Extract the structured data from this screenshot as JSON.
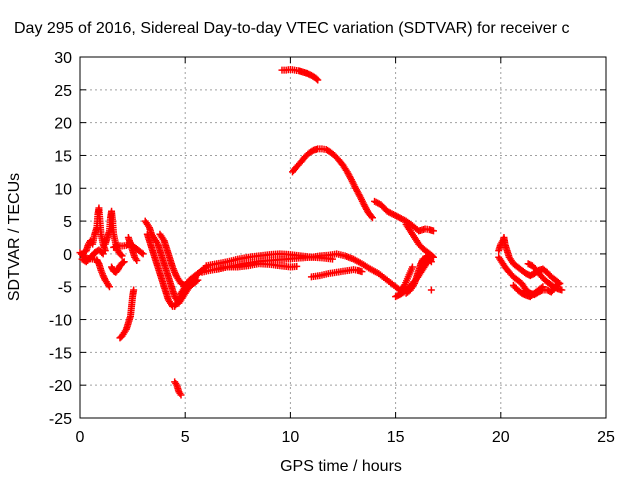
{
  "chart_data": {
    "type": "scatter",
    "title": "Day 295 of 2016, Sidereal Day-to-day VTEC variation (SDTVAR) for receiver c",
    "xlabel": "GPS time / hours",
    "ylabel": "SDTVAR / TECUs",
    "xlim": [
      0,
      25
    ],
    "ylim": [
      -25,
      30
    ],
    "xticks": [
      0,
      5,
      10,
      15,
      20,
      25
    ],
    "yticks": [
      -25,
      -20,
      -15,
      -10,
      -5,
      0,
      5,
      10,
      15,
      20,
      25,
      30
    ],
    "grid": true,
    "marker": "plus",
    "color": "#ff0000",
    "segments": [
      [
        [
          0.0,
          0.2
        ],
        [
          0.2,
          -0.5
        ],
        [
          0.4,
          -0.7
        ],
        [
          0.6,
          -0.8
        ],
        [
          0.8,
          -0.9
        ],
        [
          0.9,
          -1.5
        ],
        [
          1.0,
          -2.5
        ],
        [
          1.1,
          -3.3
        ],
        [
          1.2,
          -4.0
        ],
        [
          1.3,
          -4.5
        ],
        [
          1.4,
          -5.0
        ]
      ],
      [
        [
          0.1,
          0.0
        ],
        [
          0.3,
          0.5
        ],
        [
          0.4,
          1.5
        ],
        [
          0.5,
          2.0
        ],
        [
          0.6,
          1.5
        ],
        [
          0.7,
          3.0
        ],
        [
          0.8,
          4.0
        ],
        [
          0.85,
          6.0
        ],
        [
          0.9,
          7.0
        ],
        [
          0.95,
          5.0
        ],
        [
          1.0,
          3.0
        ],
        [
          1.1,
          1.5
        ],
        [
          1.2,
          0.5
        ]
      ],
      [
        [
          0.1,
          -0.8
        ],
        [
          0.3,
          -1.2
        ],
        [
          0.5,
          -0.6
        ],
        [
          0.7,
          0.2
        ],
        [
          0.9,
          0.6
        ],
        [
          1.1,
          0.0
        ]
      ],
      [
        [
          1.2,
          1.5
        ],
        [
          1.3,
          2.5
        ],
        [
          1.4,
          3.5
        ],
        [
          1.45,
          5.5
        ],
        [
          1.5,
          6.5
        ],
        [
          1.55,
          5.0
        ],
        [
          1.6,
          3.0
        ],
        [
          1.7,
          1.5
        ],
        [
          1.8,
          0.5
        ],
        [
          1.9,
          0.0
        ],
        [
          2.0,
          -0.3
        ]
      ],
      [
        [
          1.5,
          -2.0
        ],
        [
          1.6,
          -2.6
        ],
        [
          1.7,
          -2.8
        ],
        [
          1.8,
          -2.4
        ],
        [
          1.9,
          -1.8
        ],
        [
          2.0,
          -1.4
        ],
        [
          2.1,
          -1.2
        ]
      ],
      [
        [
          1.6,
          1.0
        ],
        [
          1.8,
          1.3
        ],
        [
          2.0,
          1.2
        ],
        [
          2.2,
          1.3
        ],
        [
          2.4,
          1.6
        ],
        [
          2.6,
          1.0
        ],
        [
          2.8,
          0.5
        ],
        [
          3.0,
          0.0
        ]
      ],
      [
        [
          1.9,
          -12.8
        ],
        [
          2.0,
          -12.5
        ],
        [
          2.1,
          -12.0
        ],
        [
          2.2,
          -11.5
        ],
        [
          2.3,
          -10.5
        ],
        [
          2.4,
          -9.5
        ],
        [
          2.45,
          -8.0
        ],
        [
          2.5,
          -6.5
        ],
        [
          2.55,
          -5.5
        ]
      ],
      [
        [
          2.3,
          2.5
        ],
        [
          2.4,
          1.5
        ],
        [
          2.5,
          0.5
        ],
        [
          2.6,
          -0.5
        ],
        [
          2.7,
          -1.0
        ]
      ],
      [
        [
          3.1,
          5.0
        ],
        [
          3.2,
          4.5
        ],
        [
          3.3,
          4.0
        ],
        [
          3.4,
          3.0
        ],
        [
          3.5,
          2.5
        ],
        [
          3.6,
          2.0
        ],
        [
          3.7,
          1.5
        ],
        [
          3.8,
          0.5
        ],
        [
          3.9,
          -0.5
        ],
        [
          4.0,
          -1.5
        ],
        [
          4.1,
          -2.5
        ],
        [
          4.2,
          -3.5
        ],
        [
          4.3,
          -4.5
        ],
        [
          4.4,
          -5.5
        ],
        [
          4.5,
          -6.5
        ],
        [
          4.6,
          -7.0
        ],
        [
          4.7,
          -7.5
        ],
        [
          4.8,
          -7.0
        ],
        [
          4.9,
          -6.5
        ],
        [
          5.0,
          -6.0
        ],
        [
          5.1,
          -5.5
        ],
        [
          5.2,
          -5.0
        ],
        [
          5.4,
          -4.5
        ],
        [
          5.6,
          -4.0
        ]
      ],
      [
        [
          3.2,
          3.0
        ],
        [
          3.3,
          2.0
        ],
        [
          3.4,
          1.0
        ],
        [
          3.5,
          0.0
        ],
        [
          3.6,
          -1.0
        ],
        [
          3.7,
          -2.0
        ],
        [
          3.8,
          -3.0
        ],
        [
          3.9,
          -4.0
        ],
        [
          4.0,
          -5.0
        ],
        [
          4.1,
          -6.0
        ],
        [
          4.2,
          -7.0
        ],
        [
          4.3,
          -7.5
        ],
        [
          4.4,
          -8.0
        ],
        [
          4.5,
          -8.0
        ],
        [
          4.6,
          -7.5
        ],
        [
          4.7,
          -7.0
        ],
        [
          4.8,
          -6.0
        ],
        [
          5.0,
          -5.0
        ],
        [
          5.2,
          -4.0
        ],
        [
          5.4,
          -3.5
        ],
        [
          5.6,
          -3.0
        ],
        [
          5.8,
          -2.5
        ],
        [
          6.0,
          -2.0
        ]
      ],
      [
        [
          3.8,
          3.0
        ],
        [
          3.9,
          2.5
        ],
        [
          4.0,
          2.0
        ],
        [
          4.1,
          1.0
        ],
        [
          4.2,
          0.0
        ],
        [
          4.3,
          -1.0
        ],
        [
          4.4,
          -2.0
        ],
        [
          4.5,
          -2.8
        ],
        [
          4.6,
          -3.5
        ],
        [
          4.8,
          -4.5
        ],
        [
          5.0,
          -4.8
        ],
        [
          5.2,
          -4.5
        ],
        [
          5.4,
          -4.0
        ],
        [
          5.6,
          -3.0
        ],
        [
          5.8,
          -2.5
        ]
      ],
      [
        [
          4.5,
          -19.5
        ],
        [
          4.6,
          -20.0
        ],
        [
          4.7,
          -21.0
        ],
        [
          4.8,
          -21.5
        ]
      ],
      [
        [
          5.8,
          -2.8
        ],
        [
          6.2,
          -2.5
        ],
        [
          6.6,
          -2.3
        ],
        [
          7.0,
          -2.0
        ],
        [
          7.4,
          -1.8
        ],
        [
          7.8,
          -1.5
        ],
        [
          8.2,
          -1.3
        ],
        [
          8.6,
          -1.1
        ],
        [
          9.0,
          -1.0
        ],
        [
          9.4,
          -0.9
        ],
        [
          9.8,
          -0.8
        ],
        [
          10.2,
          -0.7
        ],
        [
          10.6,
          -0.6
        ],
        [
          11.0,
          -0.5
        ],
        [
          11.4,
          -0.3
        ],
        [
          11.8,
          -0.2
        ],
        [
          12.2,
          0.0
        ],
        [
          12.6,
          -0.3
        ],
        [
          13.0,
          -0.8
        ],
        [
          13.4,
          -1.5
        ],
        [
          13.8,
          -2.3
        ],
        [
          14.2,
          -3.0
        ],
        [
          14.6,
          -4.0
        ],
        [
          15.0,
          -5.0
        ],
        [
          15.2,
          -5.5
        ],
        [
          15.4,
          -5.0
        ],
        [
          15.6,
          -3.5
        ],
        [
          15.8,
          -2.0
        ]
      ],
      [
        [
          6.0,
          -1.8
        ],
        [
          6.5,
          -1.5
        ],
        [
          7.0,
          -1.2
        ],
        [
          7.5,
          -0.8
        ],
        [
          8.0,
          -0.5
        ],
        [
          8.5,
          -0.3
        ],
        [
          9.0,
          -0.1
        ],
        [
          9.5,
          0.0
        ],
        [
          10.0,
          -0.1
        ],
        [
          10.5,
          -0.3
        ],
        [
          11.0,
          -0.5
        ],
        [
          11.5,
          -0.6
        ],
        [
          12.0,
          -0.8
        ]
      ],
      [
        [
          6.5,
          -2.3
        ],
        [
          7.0,
          -2.0
        ],
        [
          7.5,
          -2.0
        ],
        [
          8.0,
          -1.8
        ],
        [
          8.5,
          -1.5
        ],
        [
          9.0,
          -1.6
        ],
        [
          9.5,
          -1.8
        ],
        [
          10.0,
          -2.0
        ],
        [
          10.3,
          -1.9
        ]
      ],
      [
        [
          9.6,
          28.0
        ],
        [
          9.8,
          28.0
        ],
        [
          10.0,
          28.1
        ],
        [
          10.2,
          28.0
        ],
        [
          10.4,
          27.9
        ],
        [
          10.6,
          27.7
        ],
        [
          10.8,
          27.5
        ],
        [
          11.0,
          27.2
        ],
        [
          11.2,
          26.8
        ],
        [
          11.3,
          26.5
        ]
      ],
      [
        [
          10.1,
          12.5
        ],
        [
          10.3,
          13.3
        ],
        [
          10.5,
          14.0
        ],
        [
          10.7,
          14.8
        ],
        [
          10.9,
          15.4
        ],
        [
          11.1,
          15.8
        ],
        [
          11.3,
          16.0
        ],
        [
          11.5,
          16.0
        ],
        [
          11.7,
          15.9
        ],
        [
          11.9,
          15.5
        ],
        [
          12.1,
          15.0
        ],
        [
          12.3,
          14.3
        ],
        [
          12.5,
          13.5
        ],
        [
          12.7,
          12.5
        ],
        [
          12.9,
          11.3
        ],
        [
          13.1,
          10.0
        ],
        [
          13.3,
          8.8
        ],
        [
          13.5,
          7.5
        ],
        [
          13.7,
          6.3
        ],
        [
          13.9,
          5.5
        ]
      ],
      [
        [
          11.0,
          -3.5
        ],
        [
          11.4,
          -3.3
        ],
        [
          11.8,
          -3.0
        ],
        [
          12.2,
          -2.8
        ],
        [
          12.6,
          -2.6
        ],
        [
          13.0,
          -2.4
        ],
        [
          13.2,
          -2.5
        ],
        [
          13.4,
          -2.7
        ]
      ],
      [
        [
          14.0,
          8.0
        ],
        [
          14.3,
          7.5
        ],
        [
          14.6,
          6.5
        ],
        [
          14.9,
          6.0
        ],
        [
          15.2,
          5.5
        ],
        [
          15.5,
          5.0
        ],
        [
          15.8,
          4.3
        ],
        [
          16.1,
          3.5
        ],
        [
          16.4,
          3.8
        ],
        [
          16.6,
          3.7
        ],
        [
          16.8,
          3.5
        ]
      ],
      [
        [
          15.5,
          -6.0
        ],
        [
          15.7,
          -5.5
        ],
        [
          15.9,
          -4.5
        ],
        [
          16.0,
          -3.5
        ],
        [
          16.1,
          -2.5
        ],
        [
          16.2,
          -1.5
        ],
        [
          16.3,
          -0.8
        ],
        [
          16.5,
          -0.5
        ],
        [
          16.6,
          -0.8
        ],
        [
          16.7,
          -1.2
        ]
      ],
      [
        [
          15.0,
          -6.5
        ],
        [
          15.2,
          -6.2
        ],
        [
          15.4,
          -5.8
        ],
        [
          15.6,
          -5.2
        ],
        [
          15.8,
          -4.5
        ],
        [
          16.0,
          -3.8
        ],
        [
          16.2,
          -2.8
        ],
        [
          16.4,
          -1.8
        ],
        [
          16.5,
          -1.2
        ]
      ],
      [
        [
          15.5,
          4.5
        ],
        [
          15.7,
          3.5
        ],
        [
          15.9,
          2.5
        ],
        [
          16.1,
          1.5
        ],
        [
          16.3,
          0.8
        ],
        [
          16.5,
          0.3
        ],
        [
          16.7,
          -0.2
        ],
        [
          16.8,
          -0.5
        ]
      ],
      [
        [
          16.7,
          -5.5
        ]
      ],
      [
        [
          19.9,
          0.5
        ],
        [
          20.0,
          1.5
        ],
        [
          20.1,
          2.0
        ],
        [
          20.15,
          2.5
        ],
        [
          20.2,
          1.5
        ],
        [
          20.3,
          0.5
        ],
        [
          20.4,
          -0.5
        ],
        [
          20.6,
          -1.5
        ],
        [
          20.8,
          -2.0
        ],
        [
          21.0,
          -2.5
        ],
        [
          21.2,
          -3.0
        ],
        [
          21.4,
          -3.3
        ],
        [
          21.6,
          -3.0
        ],
        [
          21.8,
          -2.5
        ],
        [
          22.0,
          -2.3
        ],
        [
          22.2,
          -2.8
        ],
        [
          22.4,
          -3.5
        ],
        [
          22.6,
          -4.0
        ],
        [
          22.8,
          -4.5
        ]
      ],
      [
        [
          19.9,
          -0.5
        ],
        [
          20.0,
          -1.0
        ],
        [
          20.2,
          -2.0
        ],
        [
          20.4,
          -2.8
        ],
        [
          20.6,
          -3.5
        ],
        [
          20.8,
          -4.0
        ],
        [
          21.0,
          -4.5
        ],
        [
          21.2,
          -5.5
        ],
        [
          21.4,
          -6.0
        ],
        [
          21.6,
          -6.2
        ],
        [
          21.8,
          -5.8
        ],
        [
          22.0,
          -5.5
        ],
        [
          22.2,
          -5.5
        ],
        [
          22.4,
          -5.8
        ],
        [
          22.6,
          -5.0
        ],
        [
          22.8,
          -4.5
        ]
      ],
      [
        [
          21.3,
          -1.5
        ],
        [
          21.5,
          -1.8
        ],
        [
          21.7,
          -2.5
        ],
        [
          21.9,
          -3.3
        ],
        [
          22.1,
          -4.0
        ],
        [
          22.3,
          -4.5
        ],
        [
          22.5,
          -5.0
        ],
        [
          22.7,
          -5.3
        ],
        [
          22.9,
          -5.5
        ]
      ],
      [
        [
          20.6,
          -4.8
        ],
        [
          20.8,
          -5.5
        ],
        [
          21.0,
          -6.0
        ],
        [
          21.2,
          -6.3
        ],
        [
          21.4,
          -6.5
        ],
        [
          21.6,
          -6.0
        ],
        [
          21.8,
          -5.5
        ],
        [
          22.0,
          -5.0
        ]
      ]
    ]
  }
}
